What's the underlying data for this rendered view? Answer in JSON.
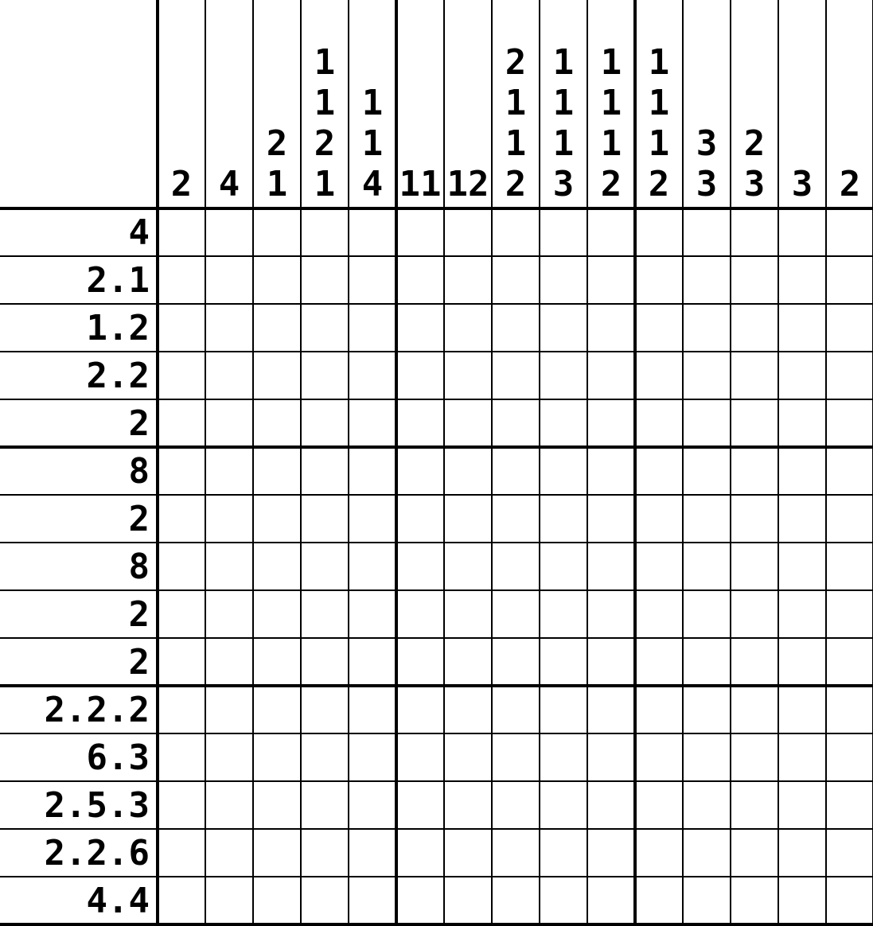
{
  "puzzle": {
    "type": "nonogram",
    "rows": 15,
    "cols": 15,
    "row_clue_separator": ".",
    "row_clues": [
      [
        4
      ],
      [
        2,
        1
      ],
      [
        1,
        2
      ],
      [
        2,
        2
      ],
      [
        2
      ],
      [
        8
      ],
      [
        2
      ],
      [
        8
      ],
      [
        2
      ],
      [
        2
      ],
      [
        2,
        2,
        2
      ],
      [
        6,
        3
      ],
      [
        2,
        5,
        3
      ],
      [
        2,
        2,
        6
      ],
      [
        4,
        4
      ]
    ],
    "col_clues": [
      [
        2
      ],
      [
        4
      ],
      [
        2,
        1
      ],
      [
        1,
        1,
        2,
        1
      ],
      [
        1,
        1,
        4
      ],
      [
        11
      ],
      [
        12
      ],
      [
        2,
        1,
        1,
        2
      ],
      [
        1,
        1,
        1,
        3
      ],
      [
        1,
        1,
        1,
        2
      ],
      [
        1,
        1,
        1,
        2
      ],
      [
        3,
        3
      ],
      [
        2,
        3
      ],
      [
        3
      ],
      [
        2
      ]
    ],
    "filled_cells": []
  },
  "colors": {
    "grid_line": "#000000",
    "background": "#ffffff",
    "clue_text": "#000000"
  }
}
